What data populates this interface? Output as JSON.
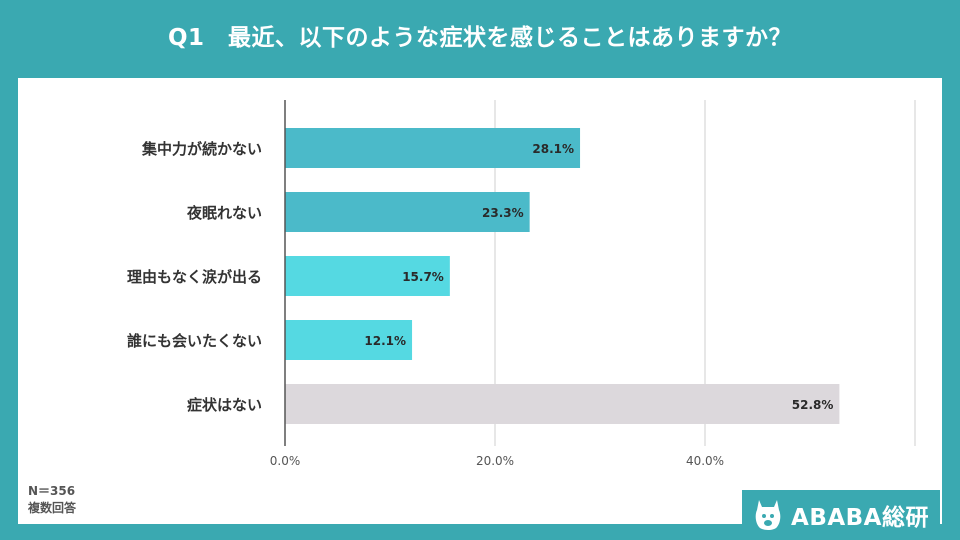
{
  "title": "Q1　最近、以下のような症状を感じることはありますか？",
  "notes": {
    "sample": "N＝356",
    "answer_type": "複数回答"
  },
  "brand": {
    "name": "ABABA総研",
    "icon": "alpaca-icon"
  },
  "colors": {
    "background": "#3aa9b1",
    "bar_dark": "#4bbac9",
    "bar_light": "#55d9e2",
    "bar_gray": "#dcd8dc"
  },
  "chart_data": {
    "type": "bar",
    "orientation": "horizontal",
    "categories": [
      "集中力が続かない",
      "夜眠れない",
      "理由もなく涙が出る",
      "誰にも会いたくない",
      "症状はない"
    ],
    "values": [
      28.1,
      23.3,
      15.7,
      12.1,
      52.8
    ],
    "data_labels": [
      "28.1%",
      "23.3%",
      "15.7%",
      "12.1%",
      "52.8%"
    ],
    "bar_colors": [
      "#4bbac9",
      "#4bbac9",
      "#55d9e2",
      "#55d9e2",
      "#dcd8dc"
    ],
    "xlim": [
      0,
      60
    ],
    "x_ticks": [
      0,
      20,
      40
    ],
    "x_tick_labels": [
      "0.0%",
      "20.0%",
      "40.0%"
    ],
    "grid": true
  }
}
